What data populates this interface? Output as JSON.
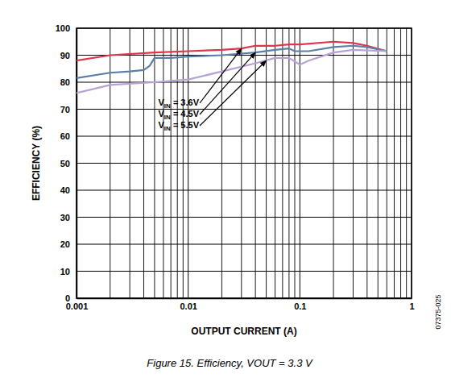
{
  "chart_data": {
    "type": "line",
    "caption": "Figure 15. Efficiency, VOUT = 3.3 V",
    "xlabel": "OUTPUT CURRENT (A)",
    "ylabel": "EFFICIENCY (%)",
    "side_note": "07375-025",
    "log": "x",
    "grid": true,
    "xlim": [
      0.001,
      1
    ],
    "ylim": [
      0,
      100
    ],
    "xticks": [
      0.001,
      0.01,
      0.1,
      1
    ],
    "yticks": [
      0,
      10,
      20,
      30,
      40,
      50,
      60,
      70,
      80,
      90,
      100
    ],
    "series": [
      {
        "color": "#e0344d",
        "x": [
          0.001,
          0.002,
          0.005,
          0.01,
          0.02,
          0.03,
          0.04,
          0.06,
          0.08,
          0.1,
          0.2,
          0.3,
          0.4,
          0.6
        ],
        "values": [
          88,
          90,
          91,
          91.5,
          92,
          92.5,
          93.5,
          93.5,
          94,
          94,
          95,
          94.5,
          93.5,
          91.5
        ]
      },
      {
        "color": "#5b7fa8",
        "x": [
          0.001,
          0.002,
          0.003,
          0.004,
          0.0045,
          0.005,
          0.007,
          0.01,
          0.02,
          0.04,
          0.06,
          0.08,
          0.09,
          0.12,
          0.2,
          0.3,
          0.4,
          0.6
        ],
        "values": [
          81.5,
          83.5,
          84,
          84.5,
          86,
          89,
          89,
          89.5,
          90,
          91,
          92,
          92.5,
          91.5,
          91.5,
          93,
          93.5,
          93,
          91.5
        ]
      },
      {
        "color": "#b7a3d3",
        "x": [
          0.001,
          0.002,
          0.005,
          0.01,
          0.02,
          0.04,
          0.06,
          0.08,
          0.1,
          0.12,
          0.2,
          0.3,
          0.6
        ],
        "values": [
          76,
          79,
          80,
          81,
          84,
          87,
          89,
          89,
          86.5,
          88,
          91,
          92,
          91.5
        ]
      }
    ],
    "annotations": [
      {
        "text": "VIN = 3.6V",
        "x": 0.03,
        "y": 92.5
      },
      {
        "text": "VIN = 4.5V",
        "x": 0.04,
        "y": 91
      },
      {
        "text": "VIN = 5.5V",
        "x": 0.05,
        "y": 88
      }
    ]
  }
}
